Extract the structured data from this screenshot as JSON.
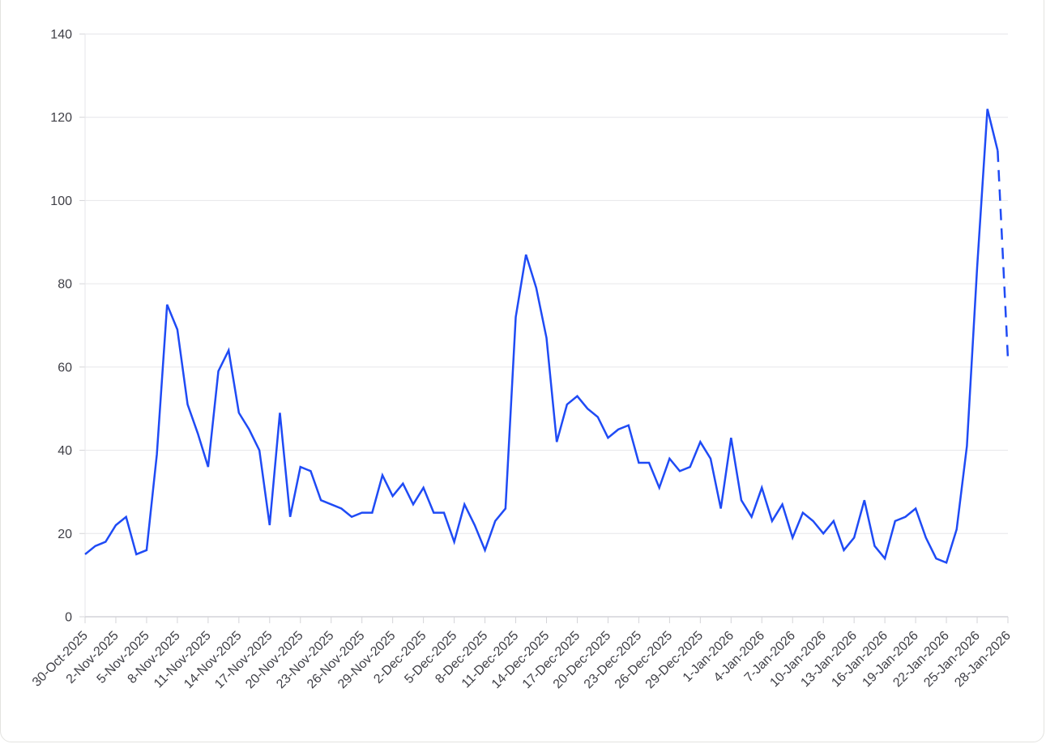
{
  "chart_data": {
    "type": "line",
    "title": "",
    "xlabel": "",
    "ylabel": "",
    "ylim": [
      0,
      140
    ],
    "yticks": [
      0,
      20,
      40,
      60,
      80,
      100,
      120,
      140
    ],
    "grid": true,
    "legend": null,
    "x_start": "30-Oct-2025",
    "x_end": "28-Jan-2026",
    "xtick_labels": [
      "30-Oct-2025",
      "2-Nov-2025",
      "5-Nov-2025",
      "8-Nov-2025",
      "11-Nov-2025",
      "14-Nov-2025",
      "17-Nov-2025",
      "20-Nov-2025",
      "23-Nov-2025",
      "26-Nov-2025",
      "29-Nov-2025",
      "2-Dec-2025",
      "5-Dec-2025",
      "8-Dec-2025",
      "11-Dec-2025",
      "14-Dec-2025",
      "17-Dec-2025",
      "20-Dec-2025",
      "23-Dec-2025",
      "26-Dec-2025",
      "29-Dec-2025",
      "1-Jan-2026",
      "4-Jan-2026",
      "7-Jan-2026",
      "10-Jan-2026",
      "13-Jan-2026",
      "16-Jan-2026",
      "19-Jan-2026",
      "22-Jan-2026",
      "25-Jan-2026",
      "28-Jan-2026"
    ],
    "series": [
      {
        "name": "value",
        "color": "#1f4bf5",
        "values": [
          15,
          17,
          18,
          22,
          24,
          15,
          16,
          39,
          75,
          69,
          51,
          44,
          36,
          59,
          64,
          49,
          45,
          40,
          22,
          49,
          24,
          36,
          35,
          28,
          27,
          26,
          24,
          25,
          25,
          34,
          29,
          32,
          27,
          31,
          25,
          25,
          18,
          27,
          22,
          16,
          23,
          26,
          72,
          87,
          79,
          67,
          42,
          51,
          53,
          50,
          48,
          43,
          45,
          46,
          37,
          37,
          31,
          38,
          35,
          36,
          42,
          38,
          26,
          43,
          28,
          24,
          31,
          23,
          27,
          19,
          25,
          23,
          20,
          23,
          16,
          19,
          28,
          17,
          14,
          23,
          24,
          26,
          19,
          14,
          13,
          21,
          41,
          84,
          122,
          112,
          62
        ],
        "dashed_from_index": 89
      }
    ]
  }
}
